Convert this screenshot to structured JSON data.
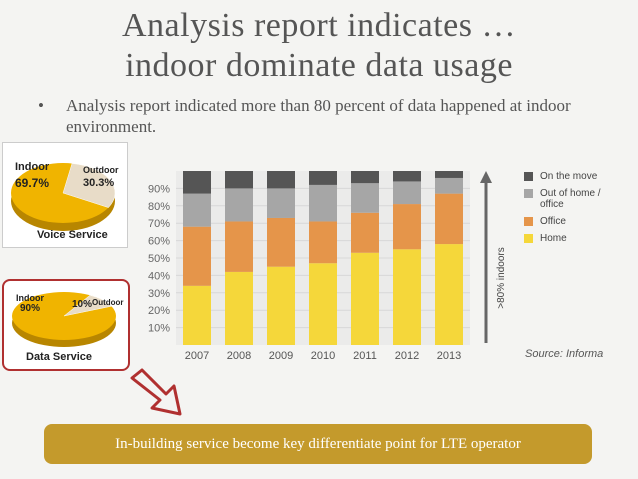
{
  "slide": {
    "title_line1": "Analysis report indicates …",
    "title_line2": "indoor dominate data usage",
    "bullet_symbol": "•",
    "bullet_text": "Analysis report indicated more than 80 percent of data happened at indoor environment.",
    "banner_text": "In-building service become key differentiate point for LTE operator",
    "source_text": "Source: Informa"
  },
  "voice_pie": {
    "indoor_label": "Indoor",
    "indoor_value": "69.7%",
    "outdoor_label": "Outdoor",
    "outdoor_value": "30.3%",
    "caption": "Voice Service",
    "indoor_fraction": 0.697
  },
  "data_pie": {
    "indoor_label": "Indoor",
    "indoor_value": "90%",
    "outdoor_label": "Outdoor",
    "outdoor_value": "10%",
    "caption": "Data Service",
    "indoor_fraction": 0.9
  },
  "colors": {
    "home": "#f5d73a",
    "office": "#e5954a",
    "out_of_home": "#a6a6a6",
    "on_the_move": "#555555",
    "banner": "#c49a2c",
    "pie_indoor": "#f0b400",
    "pie_outdoor": "#e8dcc8",
    "arrow": "#b03030"
  },
  "chart_data": {
    "type": "bar",
    "stacked": true,
    "categories": [
      "2007",
      "2008",
      "2009",
      "2010",
      "2011",
      "2012",
      "2013"
    ],
    "series": [
      {
        "name": "Home",
        "values": [
          34,
          42,
          45,
          47,
          53,
          55,
          58
        ]
      },
      {
        "name": "Office",
        "values": [
          34,
          29,
          28,
          24,
          23,
          26,
          29
        ]
      },
      {
        "name": "Out of home / office",
        "values": [
          19,
          19,
          17,
          21,
          17,
          13,
          9
        ]
      },
      {
        "name": "On the move",
        "values": [
          13,
          10,
          10,
          8,
          7,
          6,
          4
        ]
      }
    ],
    "yticks": [
      "10%",
      "20%",
      "30%",
      "40%",
      "50%",
      "60%",
      "70%",
      "80%",
      "90%"
    ],
    "ylim": [
      0,
      100
    ],
    "legend": [
      "On the move",
      "Out of home / office",
      "Office",
      "Home"
    ],
    "side_annotation": ">80% indoors"
  }
}
